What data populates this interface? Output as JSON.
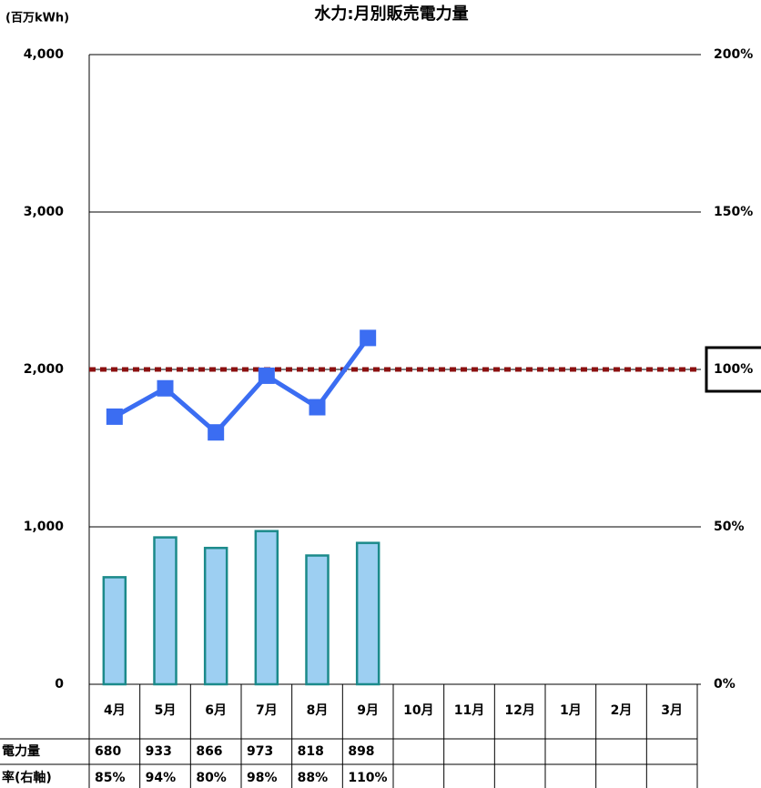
{
  "chart_data": {
    "type": "bar+line",
    "title": "水力:月別販売電力量",
    "y_axis_label": "(百万kWh)",
    "categories": [
      "4月",
      "5月",
      "6月",
      "7月",
      "8月",
      "9月",
      "10月",
      "11月",
      "12月",
      "1月",
      "2月",
      "3月"
    ],
    "series": [
      {
        "name": "電力量",
        "type": "bar",
        "color": "#9dcff2",
        "edge_color": "#1b8a8a",
        "axis": "y",
        "values": [
          680,
          933,
          866,
          973,
          818,
          898,
          null,
          null,
          null,
          null,
          null,
          null
        ]
      },
      {
        "name": "率(右軸)",
        "type": "line",
        "color": "#3b6df2",
        "axis": "y2",
        "values": [
          85,
          94,
          80,
          98,
          88,
          110,
          null,
          null,
          null,
          null,
          null,
          null
        ],
        "value_labels": [
          "85%",
          "94%",
          "80%",
          "98%",
          "88%",
          "110%",
          null,
          null,
          null,
          null,
          null,
          null
        ]
      }
    ],
    "ylim": [
      0,
      4000
    ],
    "yticks": [
      0,
      {
        "value": 1000,
        "label": "1,000"
      },
      {
        "value": 2000,
        "label": "2,000"
      },
      {
        "value": 3000,
        "label": "3,000"
      },
      {
        "value": 4000,
        "label": "4,000"
      }
    ],
    "y2lim": [
      0,
      200
    ],
    "y2ticks": [
      {
        "value": 0,
        "label": "0%"
      },
      {
        "value": 50,
        "label": "50%"
      },
      {
        "value": 100,
        "label": "100%"
      },
      {
        "value": 150,
        "label": "150%"
      },
      {
        "value": 200,
        "label": "200%"
      }
    ],
    "reference_line": {
      "value": 100,
      "axis": "y2",
      "color": "#8b1010"
    },
    "grid": true
  }
}
